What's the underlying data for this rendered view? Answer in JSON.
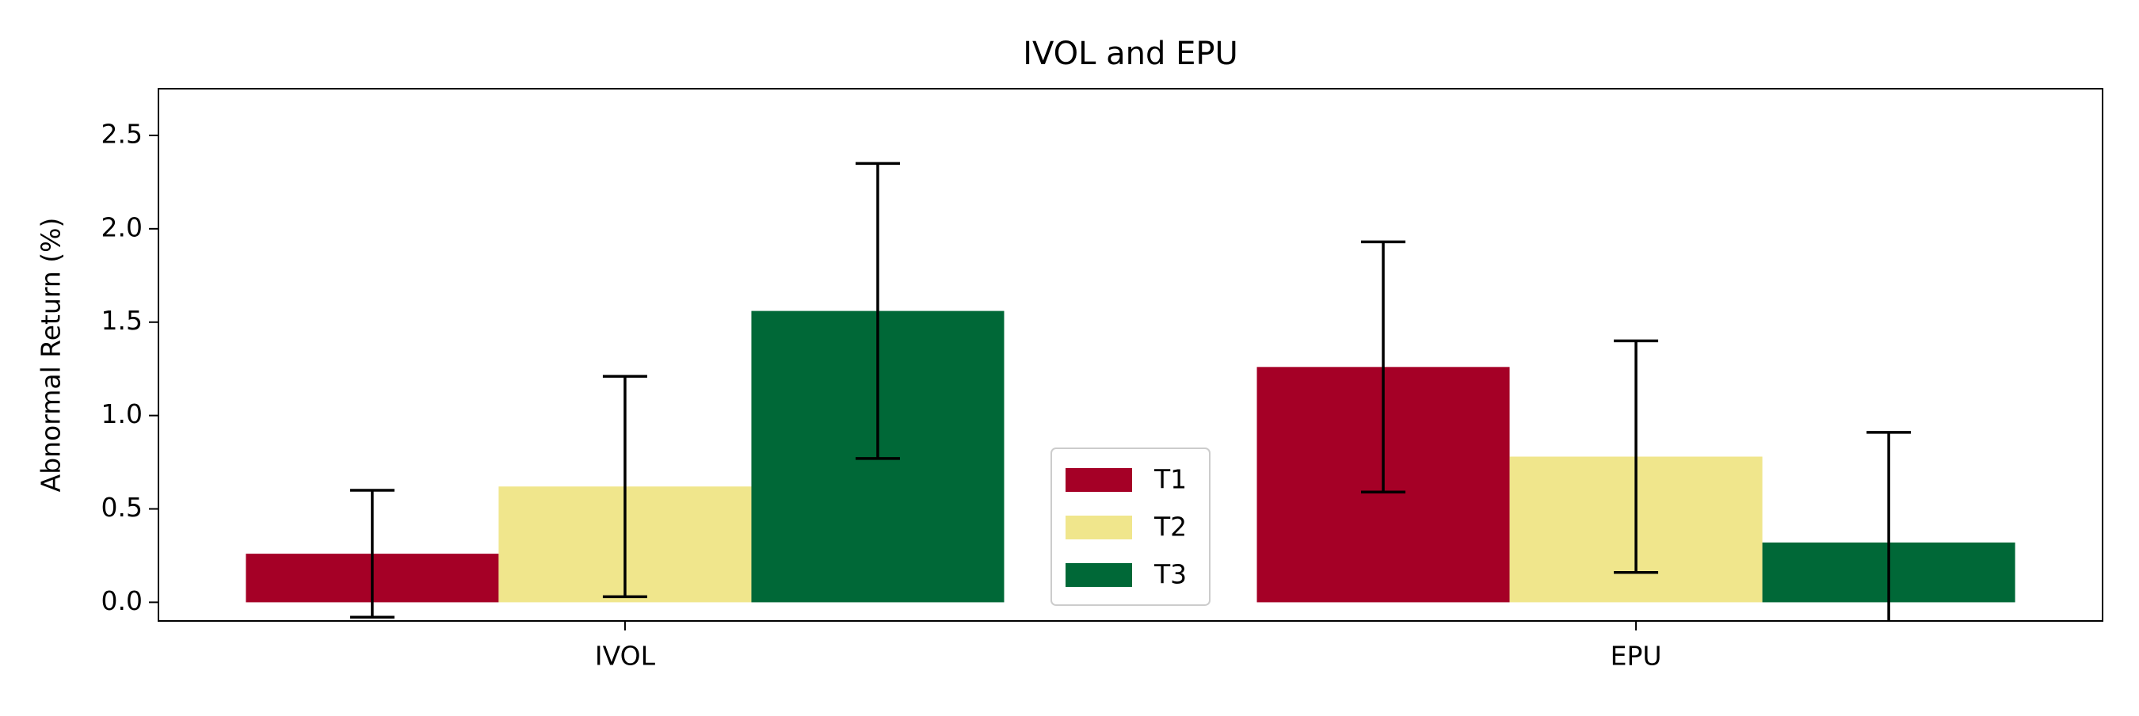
{
  "chart_data": {
    "type": "bar",
    "title": "IVOL and EPU",
    "ylabel": "Abnormal Return (%)",
    "categories": [
      "IVOL",
      "EPU"
    ],
    "series": [
      {
        "name": "T1",
        "color": "#a50026",
        "values": [
          0.26,
          1.26
        ],
        "errors": [
          0.34,
          0.67
        ]
      },
      {
        "name": "T2",
        "color": "#f0e68c",
        "values": [
          0.62,
          0.78
        ],
        "errors": [
          0.59,
          0.62
        ]
      },
      {
        "name": "T3",
        "color": "#006837",
        "values": [
          1.56,
          0.32
        ],
        "errors": [
          0.79,
          0.59
        ]
      }
    ],
    "ylim": [
      -0.1,
      2.75
    ],
    "yticks": [
      {
        "value": 0,
        "label": "0.0"
      },
      0.5,
      {
        "value": 1,
        "label": "1.0"
      },
      1.5,
      {
        "value": 2,
        "label": "2.0"
      },
      2.5
    ],
    "grid": false,
    "legend": "lower center"
  }
}
